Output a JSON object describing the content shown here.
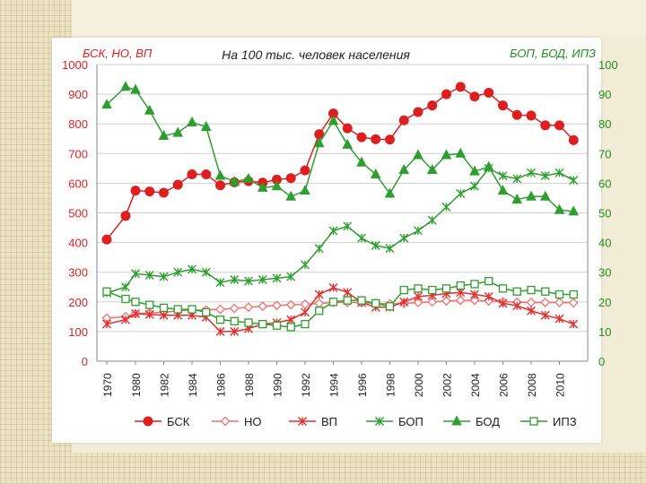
{
  "chart_data": {
    "type": "line",
    "title": "На 100 тыс. человек населения",
    "left_axis_label": "БСК, НО, ВП",
    "right_axis_label": "БОП, БОД, ИПЗ",
    "left_ylim": [
      0,
      1000
    ],
    "right_ylim": [
      0,
      100
    ],
    "left_ticks": [
      "0",
      "100",
      "200",
      "300",
      "400",
      "500",
      "600",
      "700",
      "800",
      "900",
      "1000"
    ],
    "right_ticks": [
      "0",
      "10",
      "20",
      "30",
      "40",
      "50",
      "60",
      "70",
      "80",
      "90",
      "100"
    ],
    "x_ticks": [
      "1970",
      "1980",
      "1982",
      "1984",
      "1986",
      "1988",
      "1990",
      "1992",
      "1994",
      "1996",
      "1998",
      "2000",
      "2002",
      "2004",
      "2006",
      "2008",
      "2010"
    ],
    "grid": true,
    "legend_position": "bottom",
    "series": [
      {
        "name": "БСК",
        "axis": "left",
        "color": "#dd1f1f",
        "marker": "filled-circle",
        "x": [
          1970,
          1975,
          1980,
          1981,
          1982,
          1983,
          1984,
          1985,
          1986,
          1987,
          1988,
          1989,
          1990,
          1991,
          1992,
          1993,
          1994,
          1995,
          1996,
          1997,
          1998,
          1999,
          2000,
          2001,
          2002,
          2003,
          2004,
          2005,
          2006,
          2007,
          2008,
          2009,
          2010,
          2011
        ],
        "values": [
          410,
          490,
          575,
          572,
          568,
          595,
          630,
          630,
          593,
          603,
          607,
          602,
          612,
          617,
          643,
          765,
          835,
          785,
          755,
          748,
          747,
          812,
          840,
          862,
          900,
          925,
          892,
          905,
          862,
          830,
          828,
          795,
          795,
          745
        ]
      },
      {
        "name": "НО",
        "axis": "left",
        "color": "#f07070",
        "marker": "open-diamond",
        "x": [
          1970,
          1975,
          1980,
          1981,
          1982,
          1983,
          1984,
          1985,
          1986,
          1987,
          1988,
          1989,
          1990,
          1991,
          1992,
          1993,
          1994,
          1995,
          1996,
          1997,
          1998,
          1999,
          2000,
          2001,
          2002,
          2003,
          2004,
          2005,
          2006,
          2007,
          2008,
          2009,
          2010,
          2011
        ],
        "values": [
          145,
          150,
          160,
          163,
          165,
          170,
          172,
          173,
          175,
          178,
          182,
          185,
          188,
          190,
          192,
          195,
          198,
          198,
          197,
          195,
          193,
          195,
          198,
          200,
          203,
          205,
          205,
          203,
          200,
          199,
          198,
          198,
          198,
          197
        ]
      },
      {
        "name": "ВП",
        "axis": "left",
        "color": "#e03030",
        "marker": "asterisk",
        "x": [
          1970,
          1975,
          1980,
          1981,
          1982,
          1983,
          1984,
          1985,
          1986,
          1987,
          1988,
          1989,
          1990,
          1991,
          1992,
          1993,
          1994,
          1995,
          1996,
          1997,
          1998,
          1999,
          2000,
          2001,
          2002,
          2003,
          2004,
          2005,
          2006,
          2007,
          2008,
          2009,
          2010,
          2011
        ],
        "values": [
          125,
          140,
          160,
          158,
          155,
          155,
          155,
          148,
          100,
          100,
          110,
          125,
          130,
          140,
          165,
          225,
          248,
          232,
          198,
          182,
          182,
          200,
          218,
          222,
          228,
          232,
          225,
          218,
          195,
          187,
          170,
          155,
          143,
          125
        ]
      },
      {
        "name": "БОП",
        "axis": "right",
        "color": "#2e9e2e",
        "marker": "asterisk",
        "x": [
          1970,
          1975,
          1980,
          1981,
          1982,
          1983,
          1984,
          1985,
          1986,
          1987,
          1988,
          1989,
          1990,
          1991,
          1992,
          1993,
          1994,
          1995,
          1996,
          1997,
          1998,
          1999,
          2000,
          2001,
          2002,
          2003,
          2004,
          2005,
          2006,
          2007,
          2008,
          2009,
          2010,
          2011
        ],
        "values": [
          23,
          25,
          29.5,
          29,
          28.5,
          30,
          31,
          30,
          26.5,
          27.5,
          27,
          27.5,
          28,
          28.5,
          32.5,
          38,
          44,
          45.5,
          41.5,
          39,
          38,
          41.5,
          44,
          47.5,
          52,
          56.5,
          59,
          65,
          62.5,
          61.5,
          63.5,
          62.5,
          63.5,
          61
        ]
      },
      {
        "name": "БОД",
        "axis": "right",
        "color": "#2e9e2e",
        "marker": "filled-triangle",
        "x": [
          1970,
          1975,
          1980,
          1981,
          1982,
          1983,
          1984,
          1985,
          1986,
          1987,
          1988,
          1989,
          1990,
          1991,
          1992,
          1993,
          1994,
          1995,
          1996,
          1997,
          1998,
          1999,
          2000,
          2001,
          2002,
          2003,
          2004,
          2005,
          2006,
          2007,
          2008,
          2009,
          2010,
          2011
        ],
        "values": [
          86.5,
          92.5,
          91.5,
          84.5,
          76,
          77,
          80.5,
          79,
          62.5,
          60.5,
          61.5,
          58.5,
          59,
          55.5,
          57.5,
          73.5,
          81,
          73,
          67,
          63,
          56.5,
          64.5,
          69.5,
          64.5,
          69.5,
          70,
          64,
          65.5,
          57.5,
          54.5,
          55.5,
          55.5,
          51,
          50.5
        ]
      },
      {
        "name": "ИПЗ",
        "axis": "right",
        "color": "#2e9e2e",
        "marker": "open-square",
        "x": [
          1970,
          1975,
          1980,
          1981,
          1982,
          1983,
          1984,
          1985,
          1986,
          1987,
          1988,
          1989,
          1990,
          1991,
          1992,
          1993,
          1994,
          1995,
          1996,
          1997,
          1998,
          1999,
          2000,
          2001,
          2002,
          2003,
          2004,
          2005,
          2006,
          2007,
          2008,
          2009,
          2010,
          2011
        ],
        "values": [
          23.5,
          21,
          20,
          19,
          18,
          17.5,
          17.5,
          16.5,
          14,
          13.5,
          13,
          12.5,
          12,
          11.5,
          12.5,
          17,
          20,
          20.5,
          20.5,
          19.5,
          18.5,
          24,
          24.5,
          24,
          24.5,
          25.5,
          26,
          27,
          24.5,
          23.5,
          24,
          23.5,
          22.5,
          22.5
        ]
      }
    ]
  }
}
